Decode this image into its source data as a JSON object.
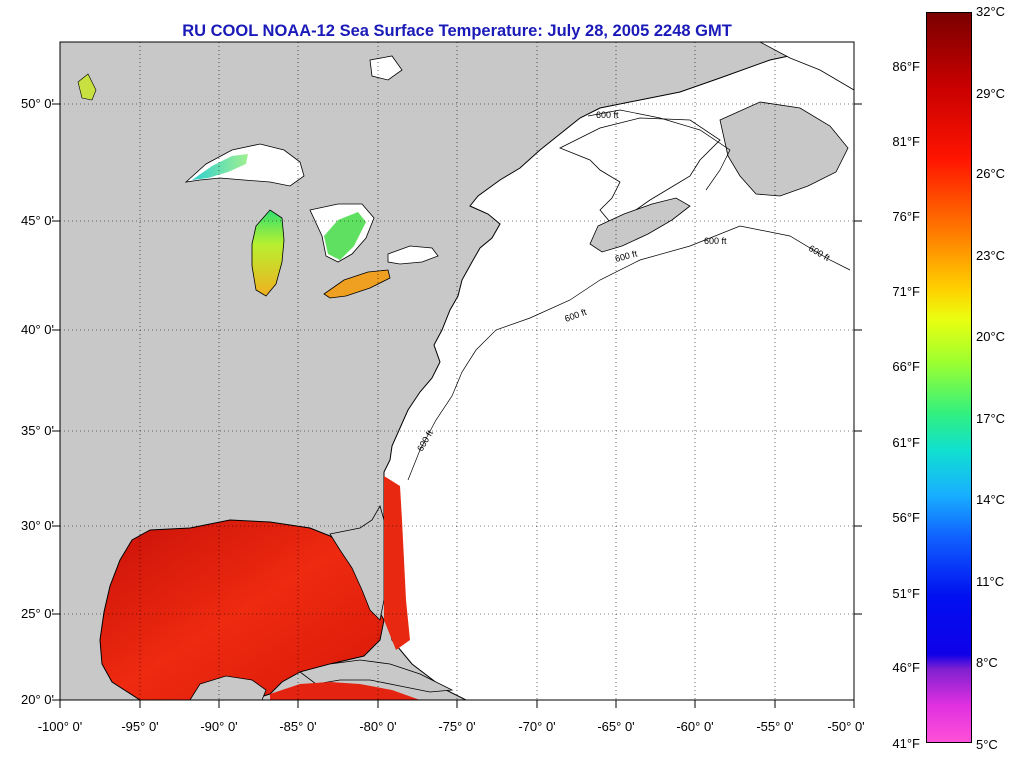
{
  "title": "RU COOL  NOAA-12  Sea Surface Temperature:  July 28, 2005 2248 GMT",
  "axes": {
    "lat_labels": [
      "50° 0'",
      "45° 0'",
      "40° 0'",
      "35° 0'",
      "30° 0'",
      "25° 0'",
      "20° 0'"
    ],
    "lon_labels": [
      "-100° 0'",
      "-95° 0'",
      "-90° 0'",
      "-85° 0'",
      "-80° 0'",
      "-75° 0'",
      "-70° 0'",
      "-65° 0'",
      "-60° 0'",
      "-55° 0'",
      "-50° 0'"
    ]
  },
  "contour_label": "600 ft",
  "colorbar": {
    "fahrenheit_labels": [
      "86°F",
      "81°F",
      "76°F",
      "71°F",
      "66°F",
      "61°F",
      "56°F",
      "51°F",
      "46°F",
      "41°F"
    ],
    "celsius_labels": [
      "32°C",
      "29°C",
      "26°C",
      "23°C",
      "20°C",
      "17°C",
      "14°C",
      "11°C",
      "8°C",
      "5°C"
    ]
  },
  "colors": {
    "land": "#c8c8c8",
    "ocean_nodata": "#ffffff",
    "title": "#1a1ab8",
    "warm_sst": "#e8200a",
    "lake_sst": "#f0d020"
  }
}
